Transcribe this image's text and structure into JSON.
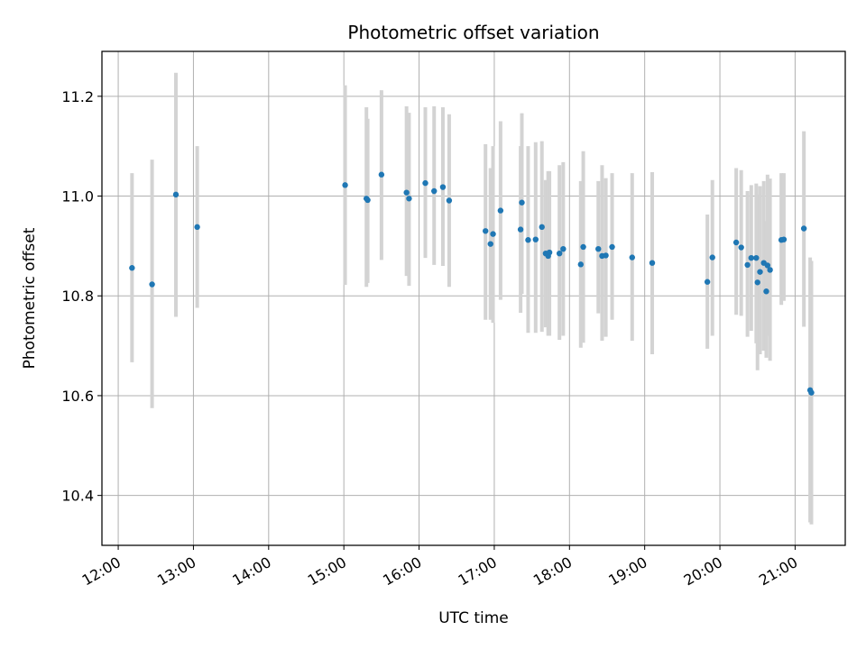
{
  "chart_data": {
    "type": "scatter",
    "title": "Photometric offset variation",
    "xlabel": "UTC time",
    "ylabel": "Photometric offset",
    "grid": true,
    "xlim": [
      "11:47",
      "21:40"
    ],
    "ylim": [
      10.3,
      11.29
    ],
    "x_ticks": [
      "12:00",
      "13:00",
      "14:00",
      "15:00",
      "16:00",
      "17:00",
      "18:00",
      "19:00",
      "20:00",
      "21:00"
    ],
    "y_ticks": [
      "10.4",
      "10.6",
      "10.8",
      "11.0",
      "11.2"
    ],
    "point_color": "#1f77b4",
    "errorbar_color": "#d3d3d3",
    "series": [
      {
        "x": [
          "12:11",
          "12:27",
          "12:46",
          "13:03",
          "15:01",
          "15:18",
          "15:19",
          "15:30",
          "15:50",
          "15:52",
          "16:05",
          "16:12",
          "16:19",
          "16:24",
          "16:53",
          "16:57",
          "16:59",
          "17:05",
          "17:21",
          "17:22",
          "17:27",
          "17:33",
          "17:38",
          "17:41",
          "17:43",
          "17:44",
          "17:52",
          "17:55",
          "18:09",
          "18:11",
          "18:23",
          "18:26",
          "18:29",
          "18:34",
          "18:50",
          "19:06",
          "19:50",
          "19:54",
          "20:13",
          "20:17",
          "20:22",
          "20:25",
          "20:29",
          "20:30",
          "20:32",
          "20:35",
          "20:37",
          "20:38",
          "20:40",
          "20:49",
          "20:51",
          "21:07",
          "21:12",
          "21:13"
        ],
        "y": [
          10.856,
          10.823,
          11.003,
          10.938,
          11.022,
          10.995,
          10.992,
          11.043,
          11.007,
          10.995,
          11.026,
          11.01,
          11.018,
          10.991,
          10.93,
          10.904,
          10.924,
          10.971,
          10.933,
          10.987,
          10.912,
          10.913,
          10.938,
          10.885,
          10.88,
          10.887,
          10.885,
          10.894,
          10.863,
          10.898,
          10.894,
          10.88,
          10.881,
          10.898,
          10.877,
          10.866,
          10.828,
          10.877,
          10.907,
          10.897,
          10.862,
          10.876,
          10.876,
          10.827,
          10.848,
          10.866,
          10.809,
          10.861,
          10.852,
          10.912,
          10.913,
          10.935,
          10.611,
          10.606
        ],
        "yerr_low": [
          10.667,
          10.575,
          10.758,
          10.776,
          10.822,
          10.818,
          10.826,
          10.872,
          10.84,
          10.82,
          10.876,
          10.862,
          10.86,
          10.818,
          10.752,
          10.752,
          10.746,
          10.792,
          10.766,
          10.804,
          10.726,
          10.726,
          10.728,
          10.737,
          10.72,
          10.72,
          10.712,
          10.72,
          10.696,
          10.706,
          10.765,
          10.71,
          10.718,
          10.752,
          10.71,
          10.683,
          10.694,
          10.72,
          10.762,
          10.76,
          10.718,
          10.73,
          10.705,
          10.651,
          10.683,
          10.69,
          10.676,
          10.72,
          10.67,
          10.782,
          10.79,
          10.738,
          10.346,
          10.342
        ],
        "yerr_high": [
          11.046,
          11.073,
          11.247,
          11.1,
          11.222,
          11.178,
          11.155,
          11.212,
          11.18,
          11.167,
          11.178,
          11.18,
          11.178,
          11.164,
          11.104,
          11.056,
          11.1,
          11.15,
          11.1,
          11.166,
          11.1,
          11.108,
          11.11,
          11.032,
          11.05,
          11.05,
          11.062,
          11.068,
          11.03,
          11.09,
          11.03,
          11.062,
          11.036,
          11.046,
          11.046,
          11.048,
          10.963,
          11.032,
          11.056,
          11.052,
          11.01,
          11.022,
          11.025,
          11.003,
          11.02,
          11.03,
          10.95,
          11.043,
          11.035,
          11.046,
          11.046,
          11.13,
          10.877,
          10.87
        ]
      }
    ]
  }
}
